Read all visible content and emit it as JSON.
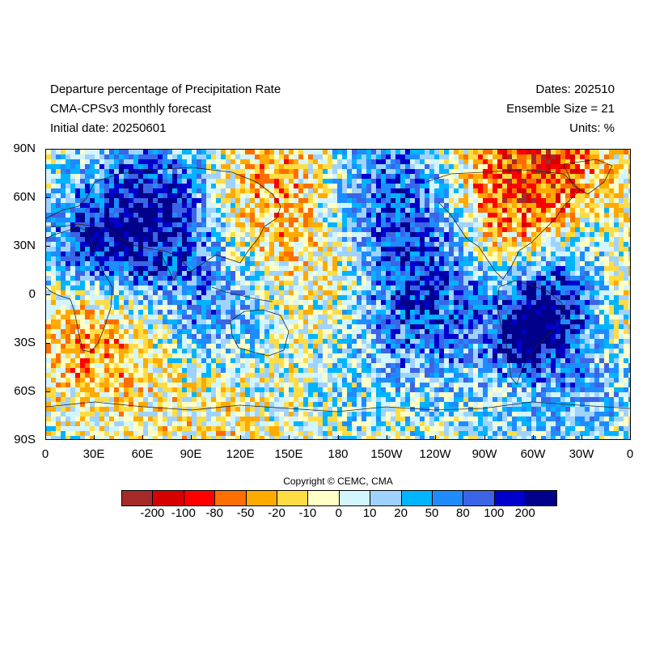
{
  "header": {
    "title": "Departure percentage of Precipitation Rate",
    "model": "CMA-CPSv3 monthly forecast",
    "initial_date": "Initial date: 20250601",
    "dates": "Dates: 202510",
    "ensemble": "Ensemble Size = 21",
    "units": "Units: %"
  },
  "map": {
    "projection": "cylindrical-equidistant",
    "lon_range": [
      0,
      360
    ],
    "lat_range": [
      -90,
      90
    ],
    "lat_labels": [
      "90N",
      "60N",
      "30N",
      "0",
      "30S",
      "60S",
      "90S"
    ],
    "lon_labels": [
      "0",
      "30E",
      "60E",
      "90E",
      "120E",
      "150E",
      "180",
      "150W",
      "120W",
      "90W",
      "60W",
      "30W",
      "0"
    ],
    "field": "precipitation rate departure percentage"
  },
  "colorbar": {
    "labels": [
      "-200",
      "-100",
      "-80",
      "-50",
      "-20",
      "-10",
      "0",
      "10",
      "20",
      "50",
      "80",
      "100",
      "200"
    ],
    "colors": [
      "#a52a2a",
      "#d70000",
      "#ff0000",
      "#ff6e00",
      "#ffaa00",
      "#ffdc44",
      "#ffffc6",
      "#d2f5ff",
      "#a0d2ff",
      "#00b4ff",
      "#1e8cff",
      "#3c64e6",
      "#0000cd",
      "#00008b"
    ]
  },
  "footer": {
    "copyright": "Copyright © CEMC, CMA"
  }
}
